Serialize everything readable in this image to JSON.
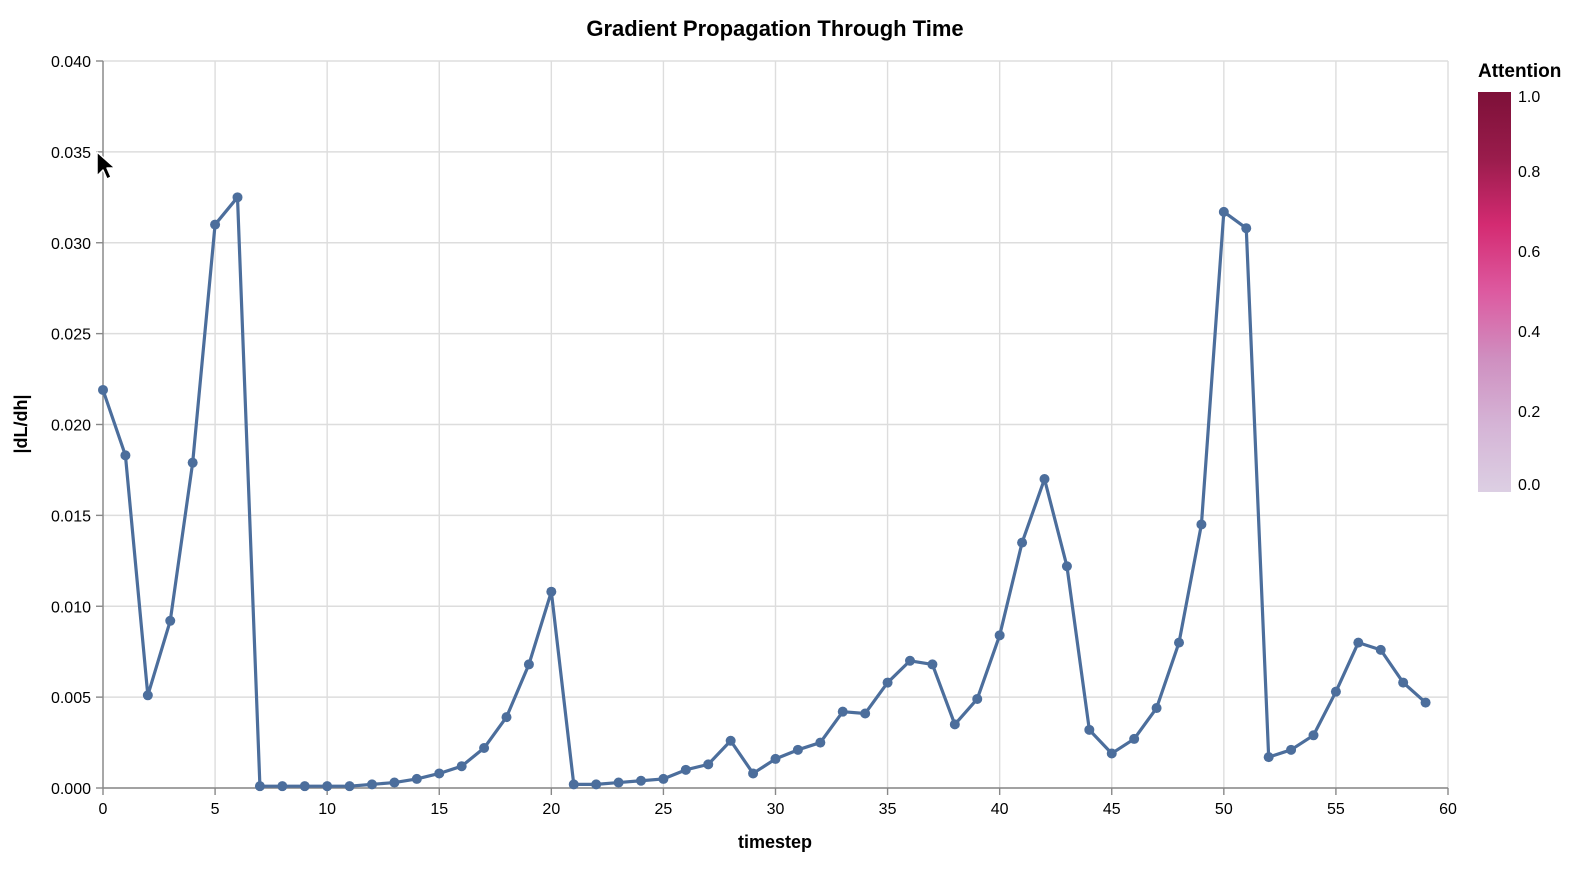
{
  "chart_data": {
    "type": "line",
    "title": "Gradient Propagation Through Time",
    "xlabel": "timestep",
    "ylabel": "|dL/dh|",
    "xlim": [
      0,
      60
    ],
    "ylim": [
      0,
      0.04
    ],
    "x_ticks": [
      0,
      5,
      10,
      15,
      20,
      25,
      30,
      35,
      40,
      45,
      50,
      55,
      60
    ],
    "y_ticks": [
      "0.000",
      "0.005",
      "0.010",
      "0.015",
      "0.020",
      "0.025",
      "0.030",
      "0.035",
      "0.040"
    ],
    "grid": true,
    "series_color": "#4c6e9c",
    "x": [
      0,
      1,
      2,
      3,
      4,
      5,
      6,
      7,
      8,
      9,
      10,
      11,
      12,
      13,
      14,
      15,
      16,
      17,
      18,
      19,
      20,
      21,
      22,
      23,
      24,
      25,
      26,
      27,
      28,
      29,
      30,
      31,
      32,
      33,
      34,
      35,
      36,
      37,
      38,
      39,
      40,
      41,
      42,
      43,
      44,
      45,
      46,
      47,
      48,
      49,
      50,
      51,
      52,
      53,
      54,
      55,
      56,
      57,
      58,
      59
    ],
    "y": [
      0.0219,
      0.0183,
      0.0051,
      0.0092,
      0.0179,
      0.031,
      0.0325,
      0.0001,
      0.0001,
      0.0001,
      0.0001,
      0.0001,
      0.0002,
      0.0003,
      0.0005,
      0.0008,
      0.0012,
      0.0022,
      0.0039,
      0.0068,
      0.0108,
      0.0002,
      0.0002,
      0.0003,
      0.0004,
      0.0005,
      0.001,
      0.0013,
      0.0026,
      0.0008,
      0.0016,
      0.0021,
      0.0025,
      0.0042,
      0.0041,
      0.0058,
      0.007,
      0.0068,
      0.0035,
      0.0049,
      0.0084,
      0.0135,
      0.017,
      0.0122,
      0.0032,
      0.0019,
      0.0027,
      0.0044,
      0.008,
      0.0145,
      0.0317,
      0.0308,
      0.0017,
      0.0021,
      0.0029,
      0.0053,
      0.008,
      0.0076,
      0.0058,
      0.0047
    ],
    "legend": {
      "title": "Attention",
      "placement": "right",
      "labels": [
        "1.0",
        "0.8",
        "0.6",
        "0.4",
        "0.2",
        "0.0"
      ],
      "domain": [
        0,
        1
      ],
      "colors": [
        "#dccfe3",
        "#d5b4d6",
        "#cf8fc0",
        "#dd5aa0",
        "#d42b72",
        "#9a1c4c",
        "#7d1038"
      ]
    }
  }
}
